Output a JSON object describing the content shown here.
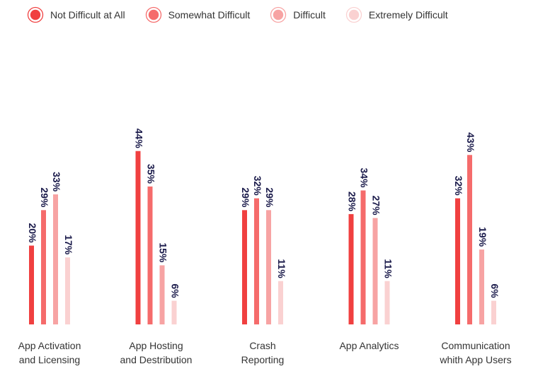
{
  "chart_data": {
    "type": "bar",
    "title": "",
    "xlabel": "",
    "ylabel": "",
    "categories": [
      [
        "App Activation",
        "and Licensing"
      ],
      [
        "App Hosting",
        "and Destribution"
      ],
      [
        "Crash",
        "Reporting"
      ],
      [
        "App Analytics"
      ],
      [
        "Communication",
        "whith App Users"
      ]
    ],
    "series": [
      {
        "name": "Not Difficult at All",
        "color": "#f04040",
        "values": [
          20,
          44,
          29,
          28,
          32
        ]
      },
      {
        "name": "Somewhat Difficult",
        "color": "#f56b6b",
        "values": [
          29,
          35,
          32,
          34,
          43
        ]
      },
      {
        "name": "Difficult",
        "color": "#f7a3a3",
        "values": [
          33,
          15,
          29,
          27,
          19
        ]
      },
      {
        "name": "Extremely Difficult",
        "color": "#fad1d1",
        "values": [
          17,
          6,
          11,
          11,
          6
        ]
      }
    ],
    "value_suffix": "%",
    "ylim": [
      0,
      44
    ],
    "grid": false,
    "legend_position": "top-left",
    "label_color": "#1b1b4b"
  }
}
